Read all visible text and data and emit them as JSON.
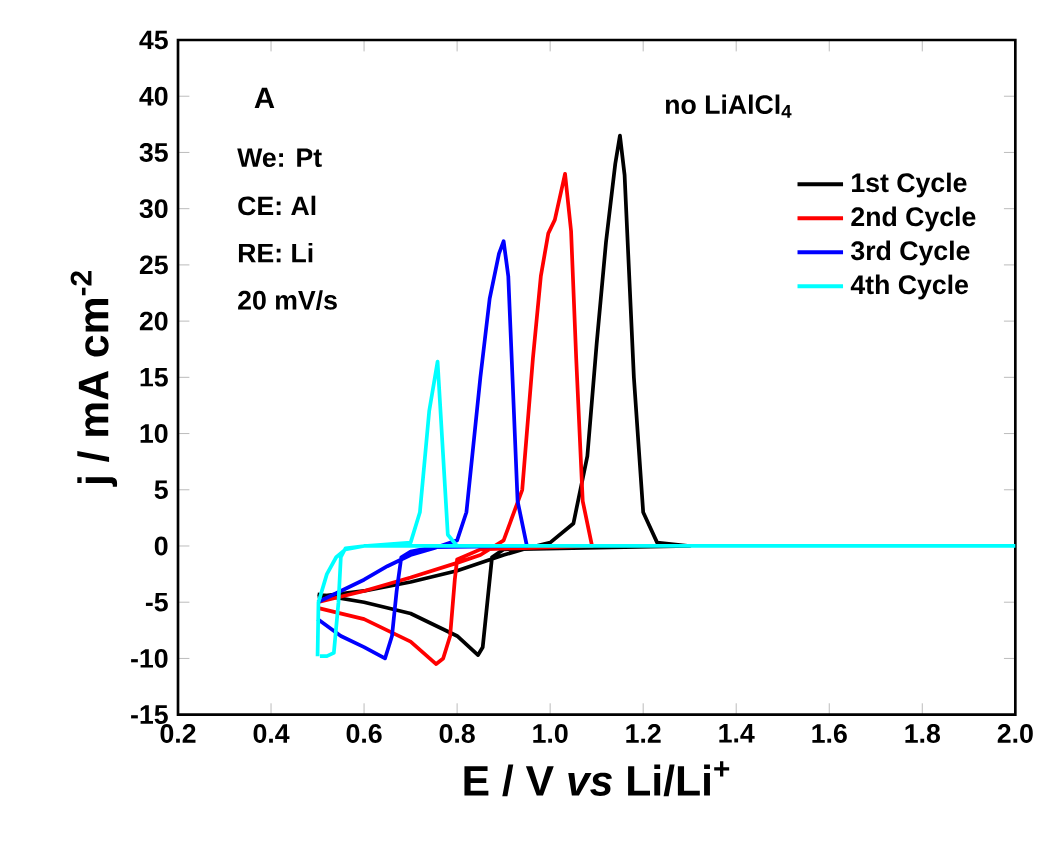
{
  "chart_data": {
    "type": "line",
    "xlabel": "E / V *vs* Li/Li$^{+}$",
    "ylabel": "j / mA cm$^{-2}$",
    "annotations": [
      "A",
      "We: Pt",
      "CE: Al",
      "RE: Li",
      "20 mV/s",
      "no LiAlCl$_{4}$"
    ],
    "xlim": [
      0.2,
      2.0
    ],
    "xticks": [
      {
        "value": 0.2,
        "label": "0.2"
      },
      {
        "value": 0.4,
        "label": "0.4"
      },
      {
        "value": 0.6,
        "label": "0.6"
      },
      {
        "value": 0.8,
        "label": "0.8"
      },
      {
        "value": 1.0,
        "label": "1.0"
      },
      {
        "value": 1.2,
        "label": "1.2"
      },
      {
        "value": 1.4,
        "label": "1.4"
      },
      {
        "value": 1.6,
        "label": "1.6"
      },
      {
        "value": 1.8,
        "label": "1.8"
      },
      {
        "value": 2.0,
        "label": "2.0"
      }
    ],
    "ylim": [
      -15,
      45
    ],
    "yticks": [
      -15,
      -10,
      -5,
      0,
      5,
      10,
      15,
      20,
      25,
      30,
      35,
      40,
      45
    ],
    "legend": "right",
    "grid": false,
    "marker": "none",
    "line_style": "solid",
    "series": [
      {
        "name": "1st Cycle",
        "color": "#000000",
        "x": [
          0.5,
          0.6,
          0.7,
          0.8,
          0.9,
          0.95,
          1.0,
          1.05,
          1.08,
          1.1,
          1.12,
          1.14,
          1.15,
          1.16,
          1.18,
          1.2,
          1.23,
          1.3,
          0.9,
          0.875,
          0.865,
          0.855,
          0.845,
          0.8,
          0.7,
          0.6,
          0.5
        ],
        "values": [
          -4.5,
          -4,
          -3.2,
          -2.2,
          -0.8,
          -0.2,
          0.3,
          2,
          8,
          18,
          27,
          34,
          36.5,
          33,
          15,
          3,
          0.3,
          0,
          -0.3,
          -1,
          -5,
          -9,
          -9.7,
          -8,
          -6,
          -5,
          -4.3
        ]
      },
      {
        "name": "2nd Cycle",
        "color": "#ff0000",
        "x": [
          0.5,
          0.6,
          0.7,
          0.8,
          0.85,
          0.9,
          0.94,
          0.963,
          0.98,
          0.996,
          1.01,
          1.032,
          1.045,
          1.056,
          1.07,
          1.09,
          0.85,
          0.8,
          0.795,
          0.785,
          0.77,
          0.755,
          0.7,
          0.6,
          0.5
        ],
        "values": [
          -5,
          -4,
          -2.8,
          -1.5,
          -0.8,
          0.5,
          5,
          16.7,
          24,
          27.8,
          29,
          33.1,
          28,
          16.7,
          4,
          0,
          -0.3,
          -1.2,
          -3,
          -8,
          -10,
          -10.5,
          -8.5,
          -6.5,
          -5.5
        ]
      },
      {
        "name": "3rd Cycle",
        "color": "#0000ff",
        "x": [
          0.5,
          0.55,
          0.6,
          0.65,
          0.7,
          0.75,
          0.8,
          0.82,
          0.85,
          0.87,
          0.89,
          0.9,
          0.91,
          0.93,
          0.95,
          0.75,
          0.7,
          0.68,
          0.67,
          0.66,
          0.645,
          0.6,
          0.55,
          0.5
        ],
        "values": [
          -5,
          -4,
          -3,
          -1.8,
          -0.8,
          -0.2,
          0.5,
          3,
          15,
          22,
          26,
          27.1,
          24,
          4,
          0,
          -0.1,
          -0.5,
          -1,
          -4,
          -8,
          -10,
          -9,
          -8,
          -6.5
        ]
      },
      {
        "name": "4th Cycle",
        "color": "#00ffff",
        "x": [
          0.5,
          0.502,
          0.52,
          0.54,
          0.56,
          0.6,
          0.7,
          0.72,
          0.74,
          0.758,
          0.77,
          0.78,
          0.8,
          2.0,
          1.5,
          0.8,
          0.6,
          0.56,
          0.55,
          0.545,
          0.535,
          0.52,
          0.505
        ],
        "values": [
          -9.8,
          -5,
          -2.5,
          -1,
          -0.3,
          0,
          0.3,
          3,
          12,
          16.4,
          8,
          1,
          0,
          0,
          0,
          0,
          0,
          -0.2,
          -1,
          -5,
          -9.5,
          -9.8,
          -9.8
        ]
      }
    ]
  }
}
